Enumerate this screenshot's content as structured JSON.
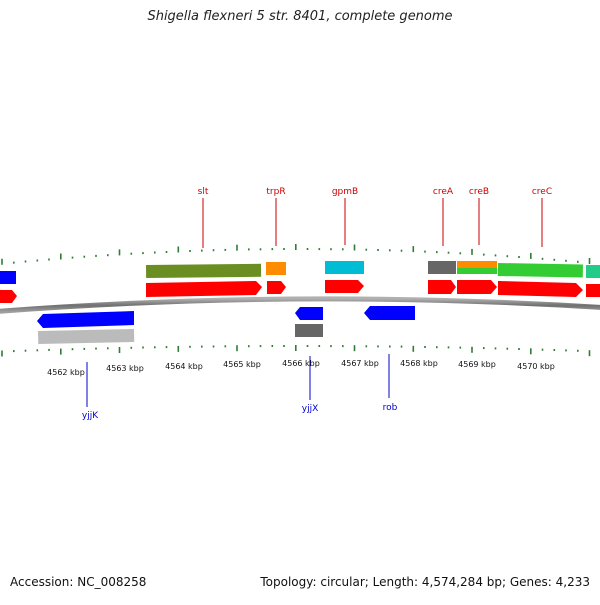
{
  "title": "Shigella flexneri 5 str. 8401, complete genome",
  "footer": {
    "accession": "Accession: NC_008258",
    "topology": "Topology: circular; Length: 4,574,284 bp; Genes: 4,233"
  },
  "kbp_labels": [
    "4562 kbp",
    "4563 kbp",
    "4564 kbp",
    "4565 kbp",
    "4566 kbp",
    "4567 kbp",
    "4568 kbp",
    "4569 kbp",
    "4570 kbp"
  ],
  "forward_gene_labels": [
    "slt",
    "trpR",
    "gpmB",
    "creA",
    "creB",
    "creC"
  ],
  "reverse_gene_labels": [
    "yjjK",
    "yjjX",
    "rob"
  ],
  "colors": {
    "forward_label": "#cc0000",
    "reverse_label": "#0000cc",
    "cds_forward": "#ff0000",
    "cds_reverse": "#0000ff",
    "backbone": "#808080",
    "ticks": "#2e7d32",
    "olive": "#6b8e23",
    "orange": "#ff8c00",
    "cyan": "#00bcd4",
    "gray": "#666666",
    "green": "#33cc33",
    "light_gray": "#bbbbbb"
  }
}
